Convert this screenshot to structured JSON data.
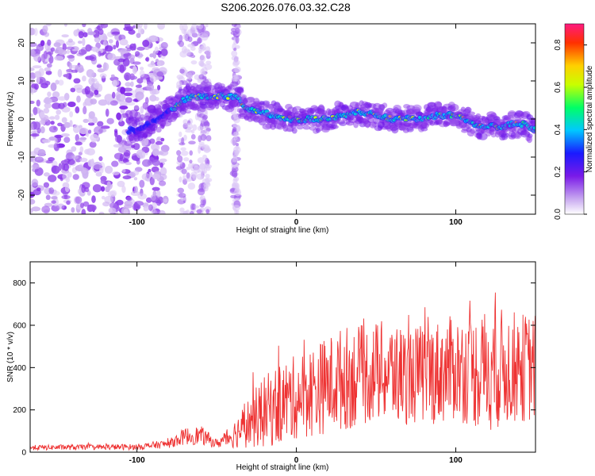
{
  "chart_data": [
    {
      "type": "heatmap",
      "title": "S206.2026.076.03.32.C28",
      "xlabel": "Height of straight line (km)",
      "ylabel": "Frequency (Hz)",
      "xlim": [
        -167,
        150
      ],
      "ylim": [
        -25,
        25
      ],
      "xticks": [
        -100,
        0,
        100
      ],
      "yticks": [
        -20,
        -10,
        0,
        10,
        20
      ],
      "colorbar": {
        "label": "Normalized spectral amplitude",
        "range": [
          0.0,
          0.9
        ],
        "ticks": [
          0.0,
          0.2,
          0.4,
          0.6,
          0.8
        ],
        "colors": [
          "#ffffff",
          "#c8a8f0",
          "#7a1ae8",
          "#1a1aff",
          "#00c8ff",
          "#00ff66",
          "#c8ff00",
          "#ffd000",
          "#ff3000",
          "#ff1a80"
        ]
      },
      "ridge": {
        "x": [
          -100,
          -90,
          -80,
          -70,
          -62,
          -55,
          -45,
          -40,
          -35,
          -32,
          -25,
          -15,
          -5,
          0,
          10,
          20,
          30,
          40,
          50,
          60,
          70,
          80,
          90,
          100,
          110,
          120,
          130,
          140,
          150
        ],
        "freq": [
          -3,
          -1,
          2,
          5,
          6,
          6,
          6,
          6,
          5,
          3,
          2,
          1,
          0,
          0,
          0,
          0,
          1,
          2,
          1,
          0,
          0,
          0,
          1,
          1,
          -1,
          -2,
          -2,
          -1,
          -3
        ]
      }
    },
    {
      "type": "line",
      "xlabel": "Height of straight line (km)",
      "ylabel": "SNR (10 * v/v)",
      "xlim": [
        -167,
        150
      ],
      "ylim": [
        0,
        900
      ],
      "xticks": [
        -100,
        0,
        100
      ],
      "yticks": [
        0,
        200,
        400,
        600,
        800
      ],
      "color": "#ee3333",
      "envelope": {
        "x": [
          -167,
          -100,
          -80,
          -70,
          -60,
          -50,
          -40,
          -30,
          -20,
          -10,
          0,
          10,
          20,
          30,
          40,
          50,
          60,
          70,
          80,
          90,
          100,
          110,
          120,
          130,
          140,
          150
        ],
        "mean": [
          22,
          25,
          40,
          75,
          80,
          40,
          80,
          140,
          190,
          230,
          260,
          290,
          320,
          350,
          360,
          380,
          370,
          360,
          370,
          380,
          400,
          380,
          390,
          400,
          400,
          400
        ],
        "amp": [
          12,
          14,
          20,
          40,
          45,
          20,
          60,
          120,
          170,
          200,
          200,
          220,
          230,
          250,
          240,
          240,
          250,
          230,
          240,
          250,
          250,
          260,
          300,
          280,
          260,
          260
        ]
      }
    }
  ]
}
